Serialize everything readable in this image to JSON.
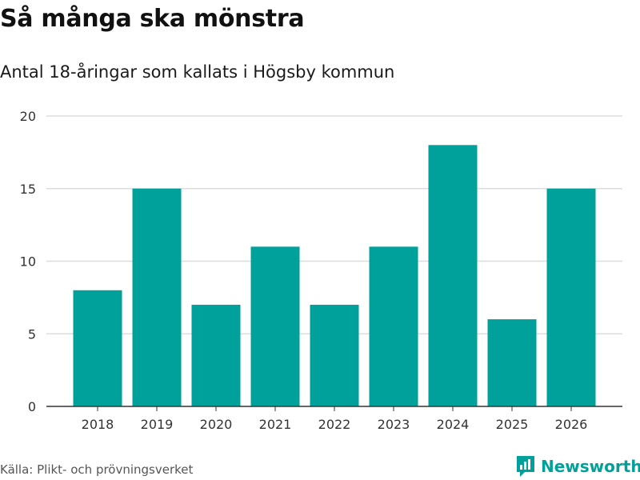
{
  "header": {
    "title": "Så många ska mönstra",
    "subtitle": "Antal 18-åringar som kallats i Högsby kommun"
  },
  "footer": {
    "source": "Källa: Plikt- och prövningsverket",
    "brand": "Newsworthy"
  },
  "colors": {
    "bar": "#00a19a",
    "brand": "#00a19a",
    "grid": "#dddddd",
    "axis": "#333333"
  },
  "chart_data": {
    "type": "bar",
    "title": "Så många ska mönstra",
    "subtitle": "Antal 18-åringar som kallats i Högsby kommun",
    "xlabel": "",
    "ylabel": "",
    "categories": [
      "2018",
      "2019",
      "2020",
      "2021",
      "2022",
      "2023",
      "2024",
      "2025",
      "2026"
    ],
    "values": [
      8,
      15,
      7,
      11,
      7,
      11,
      18,
      6,
      15
    ],
    "ylim": [
      0,
      20
    ],
    "yticks": [
      0,
      5,
      10,
      15,
      20
    ],
    "grid": true,
    "legend": "none"
  }
}
